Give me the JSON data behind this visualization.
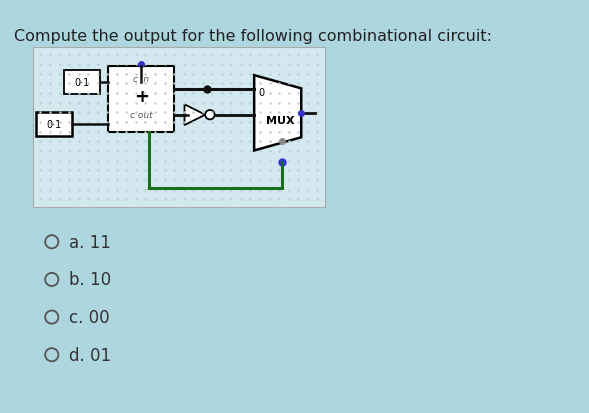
{
  "background_color": "#aed6df",
  "title": "Compute the output for the following combinational circuit:",
  "title_fontsize": 11.5,
  "title_color": "#222222",
  "circuit_bg": "#d4e9ef",
  "options": [
    "a. 11",
    "b. 10",
    "c. 00",
    "d. 01"
  ],
  "option_fontsize": 12,
  "option_color": "#333333",
  "dot_color": "#bacdd4",
  "wire_color": "#111111",
  "green_wire": "#1a6e1a",
  "blue_dot": "#3333cc",
  "gray_dot": "#888888"
}
